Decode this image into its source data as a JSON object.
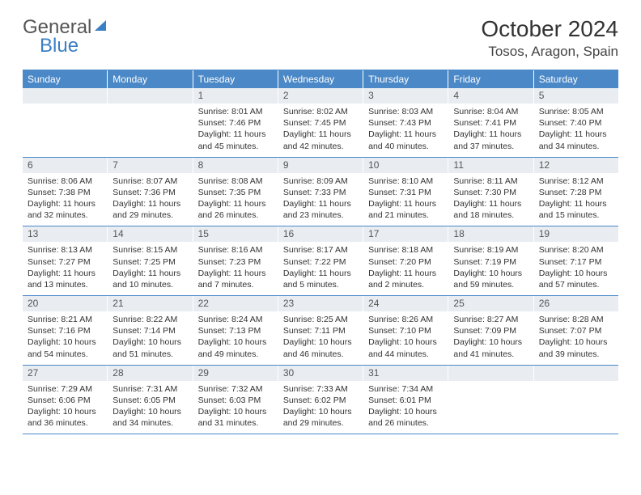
{
  "logo": {
    "text_general": "General",
    "text_blue": "Blue"
  },
  "title": "October 2024",
  "location": "Tosos, Aragon, Spain",
  "colors": {
    "header_bg": "#4a88c7",
    "header_text": "#ffffff",
    "daynum_bg": "#e9edf1",
    "border": "#4a88c7",
    "body_text": "#333333",
    "logo_general": "#555555",
    "logo_blue": "#3b7fc4"
  },
  "weekdays": [
    "Sunday",
    "Monday",
    "Tuesday",
    "Wednesday",
    "Thursday",
    "Friday",
    "Saturday"
  ],
  "weeks": [
    [
      {
        "num": "",
        "lines": []
      },
      {
        "num": "",
        "lines": []
      },
      {
        "num": "1",
        "lines": [
          "Sunrise: 8:01 AM",
          "Sunset: 7:46 PM",
          "Daylight: 11 hours and 45 minutes."
        ]
      },
      {
        "num": "2",
        "lines": [
          "Sunrise: 8:02 AM",
          "Sunset: 7:45 PM",
          "Daylight: 11 hours and 42 minutes."
        ]
      },
      {
        "num": "3",
        "lines": [
          "Sunrise: 8:03 AM",
          "Sunset: 7:43 PM",
          "Daylight: 11 hours and 40 minutes."
        ]
      },
      {
        "num": "4",
        "lines": [
          "Sunrise: 8:04 AM",
          "Sunset: 7:41 PM",
          "Daylight: 11 hours and 37 minutes."
        ]
      },
      {
        "num": "5",
        "lines": [
          "Sunrise: 8:05 AM",
          "Sunset: 7:40 PM",
          "Daylight: 11 hours and 34 minutes."
        ]
      }
    ],
    [
      {
        "num": "6",
        "lines": [
          "Sunrise: 8:06 AM",
          "Sunset: 7:38 PM",
          "Daylight: 11 hours and 32 minutes."
        ]
      },
      {
        "num": "7",
        "lines": [
          "Sunrise: 8:07 AM",
          "Sunset: 7:36 PM",
          "Daylight: 11 hours and 29 minutes."
        ]
      },
      {
        "num": "8",
        "lines": [
          "Sunrise: 8:08 AM",
          "Sunset: 7:35 PM",
          "Daylight: 11 hours and 26 minutes."
        ]
      },
      {
        "num": "9",
        "lines": [
          "Sunrise: 8:09 AM",
          "Sunset: 7:33 PM",
          "Daylight: 11 hours and 23 minutes."
        ]
      },
      {
        "num": "10",
        "lines": [
          "Sunrise: 8:10 AM",
          "Sunset: 7:31 PM",
          "Daylight: 11 hours and 21 minutes."
        ]
      },
      {
        "num": "11",
        "lines": [
          "Sunrise: 8:11 AM",
          "Sunset: 7:30 PM",
          "Daylight: 11 hours and 18 minutes."
        ]
      },
      {
        "num": "12",
        "lines": [
          "Sunrise: 8:12 AM",
          "Sunset: 7:28 PM",
          "Daylight: 11 hours and 15 minutes."
        ]
      }
    ],
    [
      {
        "num": "13",
        "lines": [
          "Sunrise: 8:13 AM",
          "Sunset: 7:27 PM",
          "Daylight: 11 hours and 13 minutes."
        ]
      },
      {
        "num": "14",
        "lines": [
          "Sunrise: 8:15 AM",
          "Sunset: 7:25 PM",
          "Daylight: 11 hours and 10 minutes."
        ]
      },
      {
        "num": "15",
        "lines": [
          "Sunrise: 8:16 AM",
          "Sunset: 7:23 PM",
          "Daylight: 11 hours and 7 minutes."
        ]
      },
      {
        "num": "16",
        "lines": [
          "Sunrise: 8:17 AM",
          "Sunset: 7:22 PM",
          "Daylight: 11 hours and 5 minutes."
        ]
      },
      {
        "num": "17",
        "lines": [
          "Sunrise: 8:18 AM",
          "Sunset: 7:20 PM",
          "Daylight: 11 hours and 2 minutes."
        ]
      },
      {
        "num": "18",
        "lines": [
          "Sunrise: 8:19 AM",
          "Sunset: 7:19 PM",
          "Daylight: 10 hours and 59 minutes."
        ]
      },
      {
        "num": "19",
        "lines": [
          "Sunrise: 8:20 AM",
          "Sunset: 7:17 PM",
          "Daylight: 10 hours and 57 minutes."
        ]
      }
    ],
    [
      {
        "num": "20",
        "lines": [
          "Sunrise: 8:21 AM",
          "Sunset: 7:16 PM",
          "Daylight: 10 hours and 54 minutes."
        ]
      },
      {
        "num": "21",
        "lines": [
          "Sunrise: 8:22 AM",
          "Sunset: 7:14 PM",
          "Daylight: 10 hours and 51 minutes."
        ]
      },
      {
        "num": "22",
        "lines": [
          "Sunrise: 8:24 AM",
          "Sunset: 7:13 PM",
          "Daylight: 10 hours and 49 minutes."
        ]
      },
      {
        "num": "23",
        "lines": [
          "Sunrise: 8:25 AM",
          "Sunset: 7:11 PM",
          "Daylight: 10 hours and 46 minutes."
        ]
      },
      {
        "num": "24",
        "lines": [
          "Sunrise: 8:26 AM",
          "Sunset: 7:10 PM",
          "Daylight: 10 hours and 44 minutes."
        ]
      },
      {
        "num": "25",
        "lines": [
          "Sunrise: 8:27 AM",
          "Sunset: 7:09 PM",
          "Daylight: 10 hours and 41 minutes."
        ]
      },
      {
        "num": "26",
        "lines": [
          "Sunrise: 8:28 AM",
          "Sunset: 7:07 PM",
          "Daylight: 10 hours and 39 minutes."
        ]
      }
    ],
    [
      {
        "num": "27",
        "lines": [
          "Sunrise: 7:29 AM",
          "Sunset: 6:06 PM",
          "Daylight: 10 hours and 36 minutes."
        ]
      },
      {
        "num": "28",
        "lines": [
          "Sunrise: 7:31 AM",
          "Sunset: 6:05 PM",
          "Daylight: 10 hours and 34 minutes."
        ]
      },
      {
        "num": "29",
        "lines": [
          "Sunrise: 7:32 AM",
          "Sunset: 6:03 PM",
          "Daylight: 10 hours and 31 minutes."
        ]
      },
      {
        "num": "30",
        "lines": [
          "Sunrise: 7:33 AM",
          "Sunset: 6:02 PM",
          "Daylight: 10 hours and 29 minutes."
        ]
      },
      {
        "num": "31",
        "lines": [
          "Sunrise: 7:34 AM",
          "Sunset: 6:01 PM",
          "Daylight: 10 hours and 26 minutes."
        ]
      },
      {
        "num": "",
        "lines": []
      },
      {
        "num": "",
        "lines": []
      }
    ]
  ]
}
